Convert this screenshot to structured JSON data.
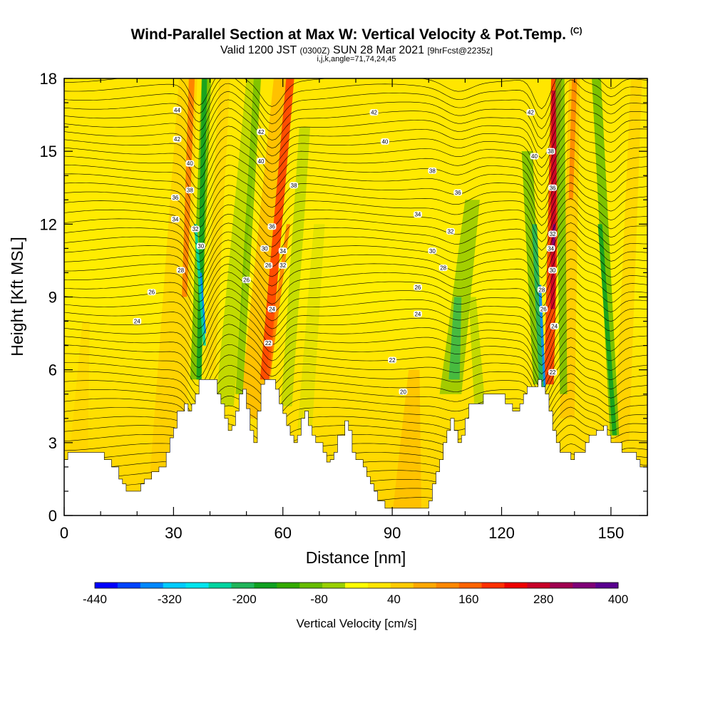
{
  "title": {
    "main": "Wind-Parallel Section at Max W: Vertical Velocity & Pot.Temp.",
    "copyright": "(C)",
    "valid_prefix": "Valid 1200 JST",
    "valid_utc": "(0300Z)",
    "valid_date": "SUN 28 Mar 2021",
    "forecast": "[9hrFcst@2235z]",
    "indices": "i,j,k,angle=71,74,24,45"
  },
  "chart_data": {
    "type": "heatmap",
    "xlabel": "Distance [nm]",
    "ylabel": "Height [Kft MSL]",
    "xlim": [
      0,
      160
    ],
    "ylim": [
      0,
      18
    ],
    "x_ticks": [
      "0",
      "30",
      "60",
      "90",
      "120",
      "150"
    ],
    "y_ticks": [
      "0",
      "3",
      "6",
      "9",
      "12",
      "15",
      "18"
    ],
    "colorbar": {
      "label": "Vertical Velocity [cm/s]",
      "range": [
        -440,
        400
      ],
      "tick_labels": [
        "-440",
        "-320",
        "-200",
        "-80",
        "40",
        "160",
        "280",
        "400"
      ],
      "colors": [
        "#0000ff",
        "#0044ff",
        "#0088ff",
        "#00ccff",
        "#00e5ee",
        "#00d4a0",
        "#20b45a",
        "#10a020",
        "#33aa00",
        "#66bb00",
        "#99d000",
        "#ffff00",
        "#ffe600",
        "#ffcc00",
        "#ffa800",
        "#ff8800",
        "#ff6400",
        "#ff3000",
        "#ee0000",
        "#c80028",
        "#a00050",
        "#800078",
        "#5a0090"
      ]
    },
    "contour_labels": [
      {
        "x": 31,
        "y": 16.7,
        "text": "44"
      },
      {
        "x": 31,
        "y": 15.5,
        "text": "42"
      },
      {
        "x": 34.5,
        "y": 14.5,
        "text": "40"
      },
      {
        "x": 34.5,
        "y": 13.4,
        "text": "38"
      },
      {
        "x": 30.5,
        "y": 13.1,
        "text": "36"
      },
      {
        "x": 30.5,
        "y": 12.2,
        "text": "34"
      },
      {
        "x": 36,
        "y": 11.8,
        "text": "32"
      },
      {
        "x": 37.5,
        "y": 11.1,
        "text": "30"
      },
      {
        "x": 32,
        "y": 10.1,
        "text": "28"
      },
      {
        "x": 24,
        "y": 9.2,
        "text": "26"
      },
      {
        "x": 20,
        "y": 8.0,
        "text": "24"
      },
      {
        "x": 54,
        "y": 15.8,
        "text": "42"
      },
      {
        "x": 54,
        "y": 14.6,
        "text": "40"
      },
      {
        "x": 63,
        "y": 13.6,
        "text": "38"
      },
      {
        "x": 57,
        "y": 11.9,
        "text": "36"
      },
      {
        "x": 55,
        "y": 11.0,
        "text": "30"
      },
      {
        "x": 60,
        "y": 10.9,
        "text": "34"
      },
      {
        "x": 56,
        "y": 10.3,
        "text": "26"
      },
      {
        "x": 60,
        "y": 10.3,
        "text": "32"
      },
      {
        "x": 50,
        "y": 9.7,
        "text": "26"
      },
      {
        "x": 57,
        "y": 8.5,
        "text": "24"
      },
      {
        "x": 56,
        "y": 7.1,
        "text": "22"
      },
      {
        "x": 85,
        "y": 16.6,
        "text": "42"
      },
      {
        "x": 88,
        "y": 15.4,
        "text": "40"
      },
      {
        "x": 101,
        "y": 14.2,
        "text": "38"
      },
      {
        "x": 108,
        "y": 13.3,
        "text": "36"
      },
      {
        "x": 97,
        "y": 12.4,
        "text": "34"
      },
      {
        "x": 106,
        "y": 11.7,
        "text": "32"
      },
      {
        "x": 101,
        "y": 10.9,
        "text": "30"
      },
      {
        "x": 104,
        "y": 10.2,
        "text": "28"
      },
      {
        "x": 97,
        "y": 9.4,
        "text": "26"
      },
      {
        "x": 97,
        "y": 8.3,
        "text": "24"
      },
      {
        "x": 90,
        "y": 6.4,
        "text": "22"
      },
      {
        "x": 93,
        "y": 5.1,
        "text": "20"
      },
      {
        "x": 128,
        "y": 16.6,
        "text": "42"
      },
      {
        "x": 129,
        "y": 14.8,
        "text": "40"
      },
      {
        "x": 133.5,
        "y": 15.0,
        "text": "38"
      },
      {
        "x": 134,
        "y": 13.5,
        "text": "36"
      },
      {
        "x": 134,
        "y": 11.6,
        "text": "32"
      },
      {
        "x": 133.5,
        "y": 11.0,
        "text": "34"
      },
      {
        "x": 134,
        "y": 10.1,
        "text": "30"
      },
      {
        "x": 131,
        "y": 9.3,
        "text": "28"
      },
      {
        "x": 131.5,
        "y": 8.5,
        "text": "26"
      },
      {
        "x": 134.5,
        "y": 7.8,
        "text": "24"
      },
      {
        "x": 134,
        "y": 5.9,
        "text": "22"
      }
    ]
  }
}
